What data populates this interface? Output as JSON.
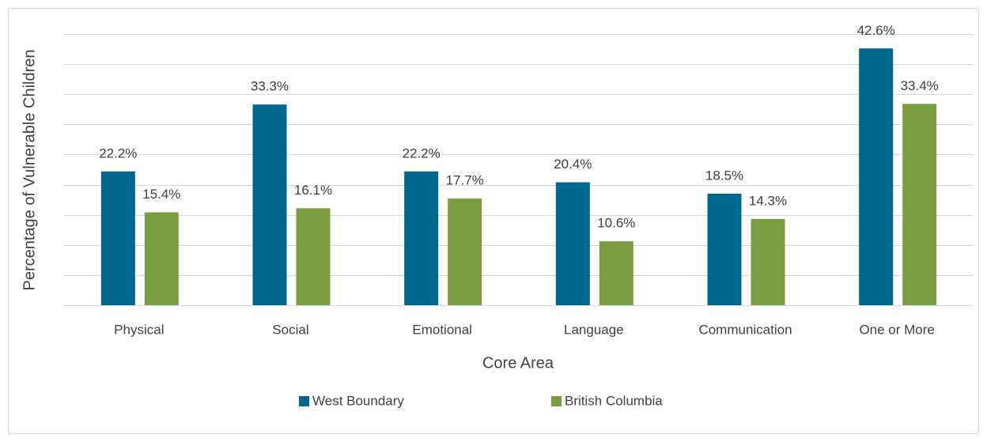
{
  "chart_data": {
    "type": "bar",
    "x_label": "Core Area",
    "y_label": "Percentage of Vulnerable Children",
    "categories": [
      "Physical",
      "Social",
      "Emotional",
      "Language",
      "Communication",
      "One or More"
    ],
    "series": [
      {
        "name": "West Boundary",
        "color": "#00688e",
        "values": [
          22.2,
          33.3,
          22.2,
          20.4,
          18.5,
          42.6
        ],
        "value_labels": [
          "22.2%",
          "33.3%",
          "22.2%",
          "20.4%",
          "18.5%",
          "42.6%"
        ]
      },
      {
        "name": "British Columbia",
        "color": "#7a9e3f",
        "values": [
          15.4,
          16.1,
          17.7,
          10.6,
          14.3,
          33.4
        ],
        "value_labels": [
          "15.4%",
          "16.1%",
          "17.7%",
          "10.6%",
          "14.3%",
          "33.4%"
        ]
      }
    ],
    "ylim": [
      0,
      45
    ],
    "yticks": [
      0,
      5,
      10,
      15,
      20,
      25,
      30,
      35,
      40,
      45
    ],
    "grid": true,
    "legend": "bottom"
  }
}
